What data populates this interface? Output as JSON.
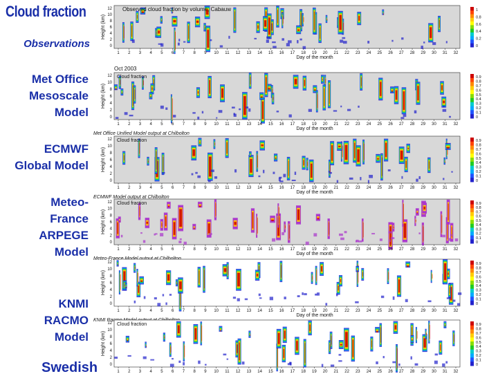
{
  "title": "Cloud fraction",
  "labels": {
    "obs": "Observations",
    "met": [
      "Met Office",
      "Mesoscale",
      "Model"
    ],
    "ecmwf": [
      "ECMWF",
      "Global Model"
    ],
    "meteo": [
      "Meteo-",
      "France",
      "ARPEGE",
      "Model"
    ],
    "knmi": [
      "KNMI",
      "RACMO",
      "Model"
    ],
    "swedish": "Swedish"
  },
  "chart_data": [
    {
      "type": "heatmap",
      "title": "Observed cloud fraction by volume, Cabauw",
      "inner_label": "",
      "xlabel": "Day of the month",
      "ylabel": "Height (km)",
      "x_ticks": [
        "1",
        "2",
        "3",
        "4",
        "5",
        "6",
        "7",
        "8",
        "9",
        "10",
        "11",
        "12",
        "13",
        "14",
        "15",
        "16",
        "17",
        "18",
        "19",
        "20",
        "21",
        "22",
        "23",
        "24",
        "25",
        "26",
        "27",
        "28",
        "29",
        "30",
        "31",
        "32"
      ],
      "y_ticks": [
        "12",
        "10",
        "8",
        "6",
        "4",
        "2",
        "0"
      ],
      "colorbar_ticks": [
        "1",
        "0.8",
        "0.6",
        "0.4",
        "0.2",
        "0"
      ],
      "footer": "",
      "colors": [
        "#cc0000",
        "#ff8800",
        "#ffee00",
        "#22cc22",
        "#00aaff",
        "#2222cc",
        "#aa33cc",
        "#ffffff"
      ]
    },
    {
      "type": "heatmap",
      "title": "Oct 2003",
      "inner_label": "Cloud fraction",
      "xlabel": "Day of the month",
      "ylabel": "Height (km)",
      "x_ticks": [
        "1",
        "2",
        "3",
        "4",
        "5",
        "6",
        "7",
        "8",
        "9",
        "10",
        "11",
        "12",
        "13",
        "14",
        "15",
        "16",
        "17",
        "18",
        "19",
        "20",
        "21",
        "22",
        "23",
        "24",
        "25",
        "26",
        "27",
        "28",
        "29",
        "30",
        "31",
        "32"
      ],
      "y_ticks": [
        "12",
        "10",
        "8",
        "6",
        "4",
        "2",
        "0"
      ],
      "colorbar_ticks": [
        "0.9",
        "0.8",
        "0.7",
        "0.6",
        "0.5",
        "0.4",
        "0.3",
        "0.2",
        "0.1",
        "0"
      ],
      "footer": "Met Office Unified Model output at Chilbolton",
      "colors": [
        "#cc0000",
        "#ff8800",
        "#ffee00",
        "#22cc22",
        "#00aaff",
        "#2222cc",
        "#aa33cc",
        "#ffffff"
      ]
    },
    {
      "type": "heatmap",
      "title": "",
      "inner_label": "Cloud fraction",
      "xlabel": "Day of the month",
      "ylabel": "Height (km)",
      "x_ticks": [
        "1",
        "2",
        "3",
        "4",
        "5",
        "6",
        "7",
        "8",
        "9",
        "10",
        "11",
        "12",
        "13",
        "14",
        "15",
        "16",
        "17",
        "18",
        "19",
        "20",
        "21",
        "22",
        "23",
        "24",
        "25",
        "26",
        "27",
        "28",
        "29",
        "30",
        "31",
        "32"
      ],
      "y_ticks": [
        "12",
        "10",
        "8",
        "6",
        "4",
        "2",
        "0"
      ],
      "colorbar_ticks": [
        "0.9",
        "0.8",
        "0.7",
        "0.6",
        "0.5",
        "0.4",
        "0.3",
        "0.2",
        "0.1",
        "0"
      ],
      "footer": "ECMWF Model output at Chilbolton",
      "colors": [
        "#cc0000",
        "#ff8800",
        "#ffee00",
        "#22cc22",
        "#00aaff",
        "#2222cc",
        "#aa33cc",
        "#ffffff"
      ]
    },
    {
      "type": "heatmap",
      "title": "",
      "inner_label": "Cloud fraction",
      "xlabel": "Day of the month",
      "ylabel": "Height (km)",
      "x_ticks": [
        "1",
        "2",
        "3",
        "4",
        "5",
        "6",
        "7",
        "8",
        "9",
        "10",
        "11",
        "12",
        "13",
        "14",
        "15",
        "16",
        "17",
        "18",
        "19",
        "20",
        "21",
        "22",
        "23",
        "24",
        "25",
        "26",
        "27",
        "28",
        "29",
        "30",
        "31",
        "32"
      ],
      "y_ticks": [
        "12",
        "10",
        "8",
        "6",
        "4",
        "2",
        "0"
      ],
      "colorbar_ticks": [
        "0.9",
        "0.8",
        "0.7",
        "0.6",
        "0.5",
        "0.4",
        "0.3",
        "0.2",
        "0.1",
        "0"
      ],
      "footer": "Meteo-France Model output at Chilbolton",
      "colors": [
        "#cc0000",
        "#ff8800",
        "#ffee00",
        "#22cc22",
        "#00aaff",
        "#2222cc",
        "#aa33cc",
        "#ffffff"
      ]
    },
    {
      "type": "heatmap",
      "title": "",
      "inner_label": "",
      "xlabel": "Day of the month",
      "ylabel": "Height (km)",
      "x_ticks": [
        "1",
        "2",
        "3",
        "4",
        "5",
        "6",
        "7",
        "8",
        "9",
        "10",
        "11",
        "12",
        "13",
        "14",
        "15",
        "16",
        "17",
        "18",
        "19",
        "20",
        "21",
        "22",
        "23",
        "24",
        "25",
        "26",
        "27",
        "28",
        "29",
        "30",
        "31",
        "32"
      ],
      "y_ticks": [
        "12",
        "10",
        "8",
        "6",
        "4",
        "2",
        "0"
      ],
      "colorbar_ticks": [
        "0.9",
        "0.8",
        "0.7",
        "0.6",
        "0.5",
        "0.4",
        "0.3",
        "0.2",
        "0.1",
        "0"
      ],
      "footer": "KNMI Racmo Model output at Chilbolton",
      "colors": [
        "#cc0000",
        "#ff8800",
        "#ffee00",
        "#22cc22",
        "#00aaff",
        "#2222cc",
        "#aa33cc",
        "#ffffff"
      ]
    },
    {
      "type": "heatmap",
      "title": "",
      "inner_label": "Cloud fraction",
      "xlabel": "Day of the month",
      "ylabel": "Height (km)",
      "x_ticks": [
        "1",
        "2",
        "3",
        "4",
        "5",
        "6",
        "7",
        "8",
        "9",
        "10",
        "11",
        "12",
        "13",
        "14",
        "15",
        "16",
        "17",
        "18",
        "19",
        "20",
        "21",
        "22",
        "23",
        "24",
        "25",
        "26",
        "27",
        "28",
        "29",
        "30",
        "31",
        "32"
      ],
      "y_ticks": [
        "12",
        "10",
        "8",
        "6",
        "4",
        "2",
        "0"
      ],
      "colorbar_ticks": [
        "0.9",
        "0.8",
        "0.7",
        "0.6",
        "0.5",
        "0.4",
        "0.3",
        "0.2",
        "0.1",
        "0"
      ],
      "footer": "",
      "colors": [
        "#cc0000",
        "#ff8800",
        "#ffee00",
        "#22cc22",
        "#00aaff",
        "#2222cc",
        "#aa33cc",
        "#ffffff"
      ]
    }
  ]
}
